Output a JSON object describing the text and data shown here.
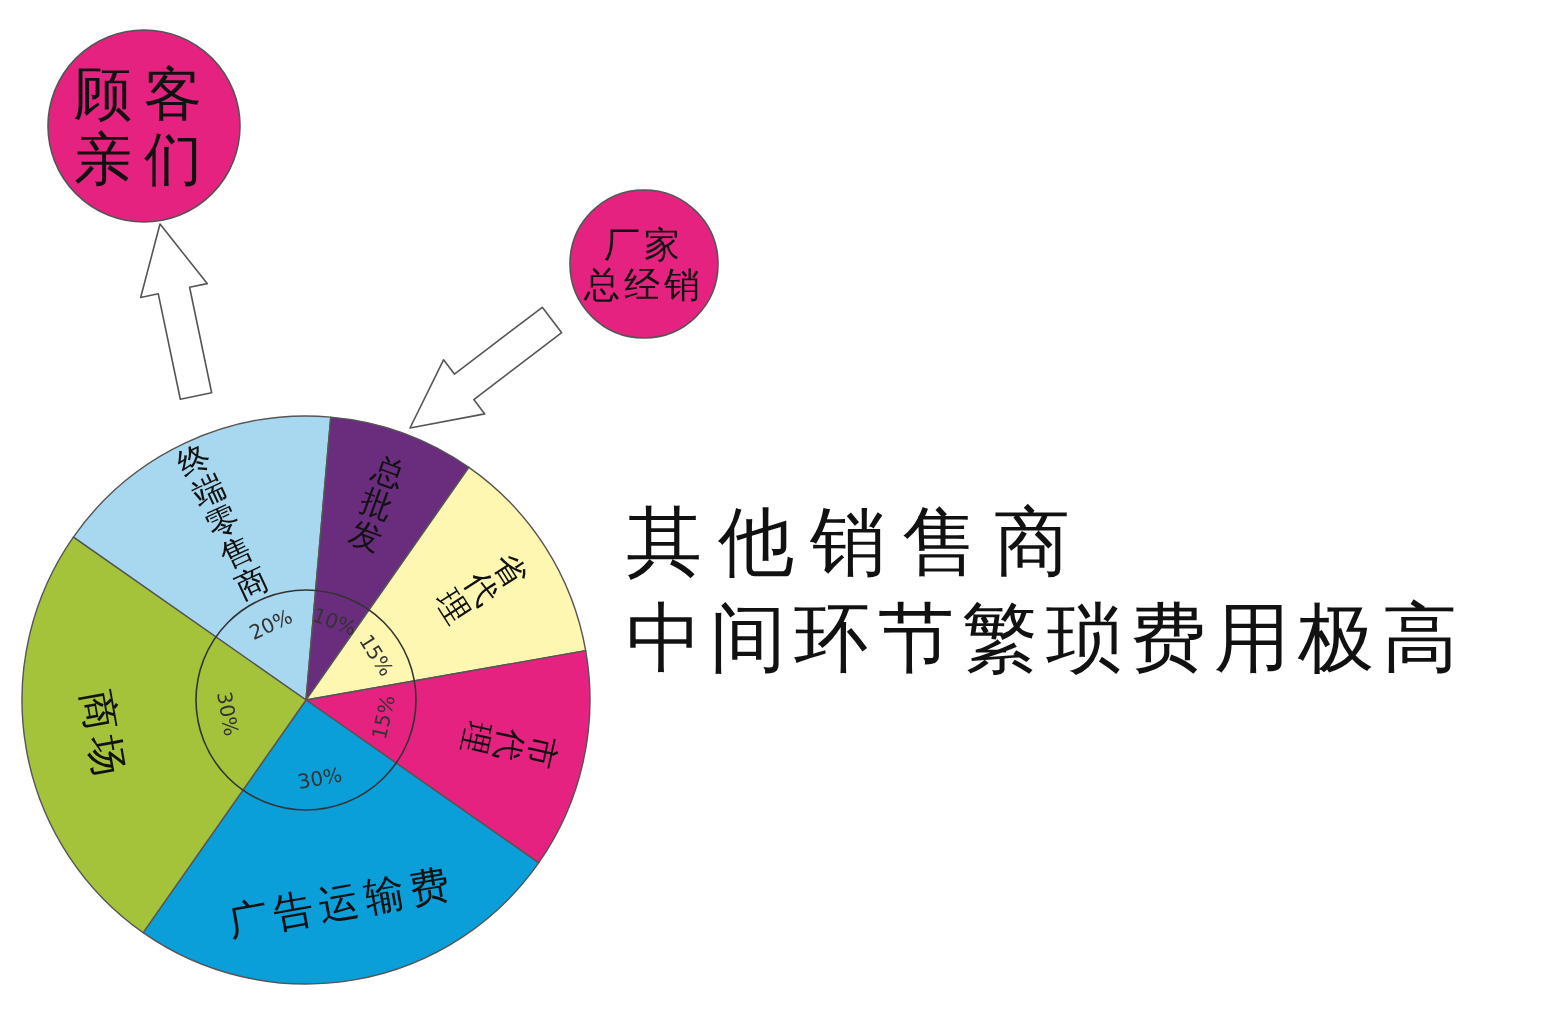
{
  "chart_data": {
    "type": "pie",
    "title": "其他销售商",
    "subtitle": "中间环节繁琐费用极高",
    "categories": [
      "终端零售商",
      "总批发",
      "省代理",
      "市代理",
      "广告运输费",
      "商场"
    ],
    "values": [
      20,
      10,
      15,
      15,
      30,
      30
    ],
    "value_labels": [
      "20%",
      "10%",
      "15%",
      "15%",
      "30%",
      "30%"
    ],
    "colors": [
      "#a8d8ef",
      "#6a2d7e",
      "#fdf7b2",
      "#e5227f",
      "#0a9fd9",
      "#a4c33a"
    ],
    "annotations": [
      "顾客亲们",
      "厂家总经销"
    ]
  }
}
